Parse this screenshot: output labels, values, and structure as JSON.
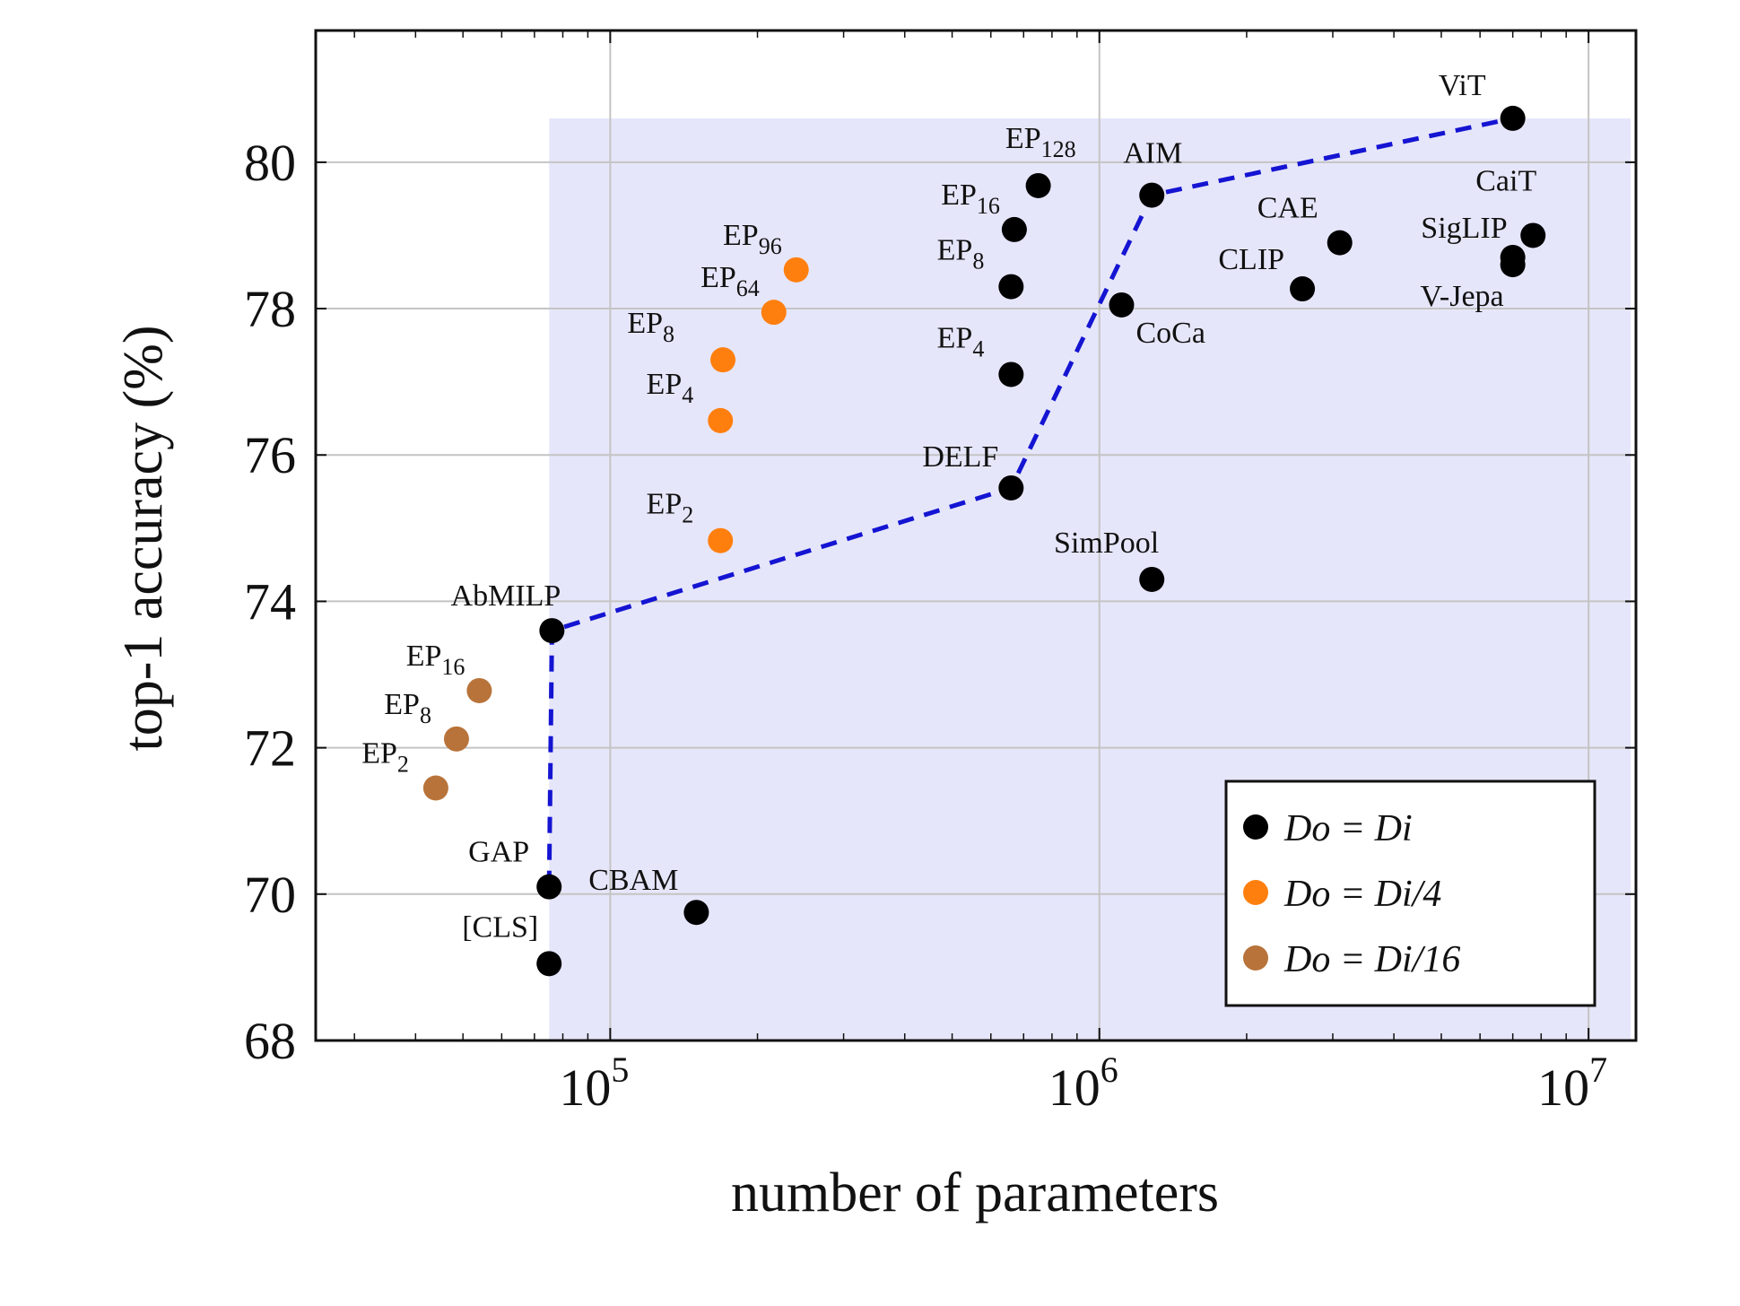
{
  "chart_data": {
    "type": "scatter",
    "xlabel": "number of parameters",
    "ylabel": "top-1 accuracy (%)",
    "xscale": "log",
    "xlim": [
      25000,
      12500000
    ],
    "ylim": [
      68,
      81.8
    ],
    "x_ticks": [
      {
        "value": 100000,
        "base": "10",
        "exp": "5"
      },
      {
        "value": 1000000,
        "base": "10",
        "exp": "6"
      },
      {
        "value": 10000000,
        "base": "10",
        "exp": "7"
      }
    ],
    "y_ticks": [
      "68",
      "70",
      "72",
      "74",
      "76",
      "78",
      "80"
    ],
    "grid": true,
    "legend_position": "bottom-right",
    "series": [
      {
        "name": "D_o = D_i",
        "legend_label": "Do = Di",
        "color": "#000000",
        "points": [
          {
            "label": "[CLS]",
            "x": 75000,
            "y": 69.05
          },
          {
            "label": "GAP",
            "x": 75000,
            "y": 70.1
          },
          {
            "label": "CBAM",
            "x": 150000,
            "y": 69.75
          },
          {
            "label": "AbMILP",
            "x": 76000,
            "y": 73.6
          },
          {
            "label": "DELF",
            "x": 660000,
            "y": 75.55
          },
          {
            "label": "SimPool",
            "x": 1280000,
            "y": 74.3
          },
          {
            "label": "EP",
            "sub": "4",
            "x": 660000,
            "y": 77.1
          },
          {
            "label": "EP",
            "sub": "8",
            "x": 660000,
            "y": 78.3
          },
          {
            "label": "EP",
            "sub": "16",
            "x": 670000,
            "y": 79.08
          },
          {
            "label": "EP",
            "sub": "128",
            "x": 750000,
            "y": 79.68
          },
          {
            "label": "CoCa",
            "x": 1110000,
            "y": 78.05
          },
          {
            "label": "AIM",
            "x": 1280000,
            "y": 79.55
          },
          {
            "label": "CLIP",
            "x": 2600000,
            "y": 78.27
          },
          {
            "label": "CAE",
            "x": 3100000,
            "y": 78.9
          },
          {
            "label": "ViT",
            "x": 7000000,
            "y": 80.6
          },
          {
            "label": "CaiT",
            "x": 7700000,
            "y": 79.0
          },
          {
            "label": "SigLIP",
            "x": 7000000,
            "y": 78.7
          },
          {
            "label": "V-Jepa",
            "x": 7000000,
            "y": 78.6
          }
        ]
      },
      {
        "name": "D_o = D_i/4",
        "legend_label": "Do = Di/4",
        "color": "#ff7f0e",
        "points": [
          {
            "label": "EP",
            "sub": "2",
            "x": 168000,
            "y": 74.83
          },
          {
            "label": "EP",
            "sub": "4",
            "x": 168000,
            "y": 76.47
          },
          {
            "label": "EP",
            "sub": "8",
            "x": 170000,
            "y": 77.3
          },
          {
            "label": "EP",
            "sub": "64",
            "x": 216000,
            "y": 77.95
          },
          {
            "label": "EP",
            "sub": "96",
            "x": 240000,
            "y": 78.53
          }
        ]
      },
      {
        "name": "D_o = D_i/16",
        "legend_label": "Do = Di/16",
        "color": "#b8733a",
        "points": [
          {
            "label": "EP",
            "sub": "2",
            "x": 44000,
            "y": 71.45
          },
          {
            "label": "EP",
            "sub": "8",
            "x": 48500,
            "y": 72.12
          },
          {
            "label": "EP",
            "sub": "16",
            "x": 54000,
            "y": 72.78
          }
        ]
      }
    ],
    "pareto_front": [
      {
        "x": 75000,
        "y": 70.1
      },
      {
        "x": 76000,
        "y": 73.6
      },
      {
        "x": 660000,
        "y": 75.55
      },
      {
        "x": 1280000,
        "y": 79.55
      },
      {
        "x": 7000000,
        "y": 80.6
      }
    ],
    "shaded_region": {
      "x_from": 75000,
      "x_to": 12200000,
      "y_top": 80.6,
      "color": "#e6e6fb"
    },
    "pareto_color": "#1414d2"
  }
}
